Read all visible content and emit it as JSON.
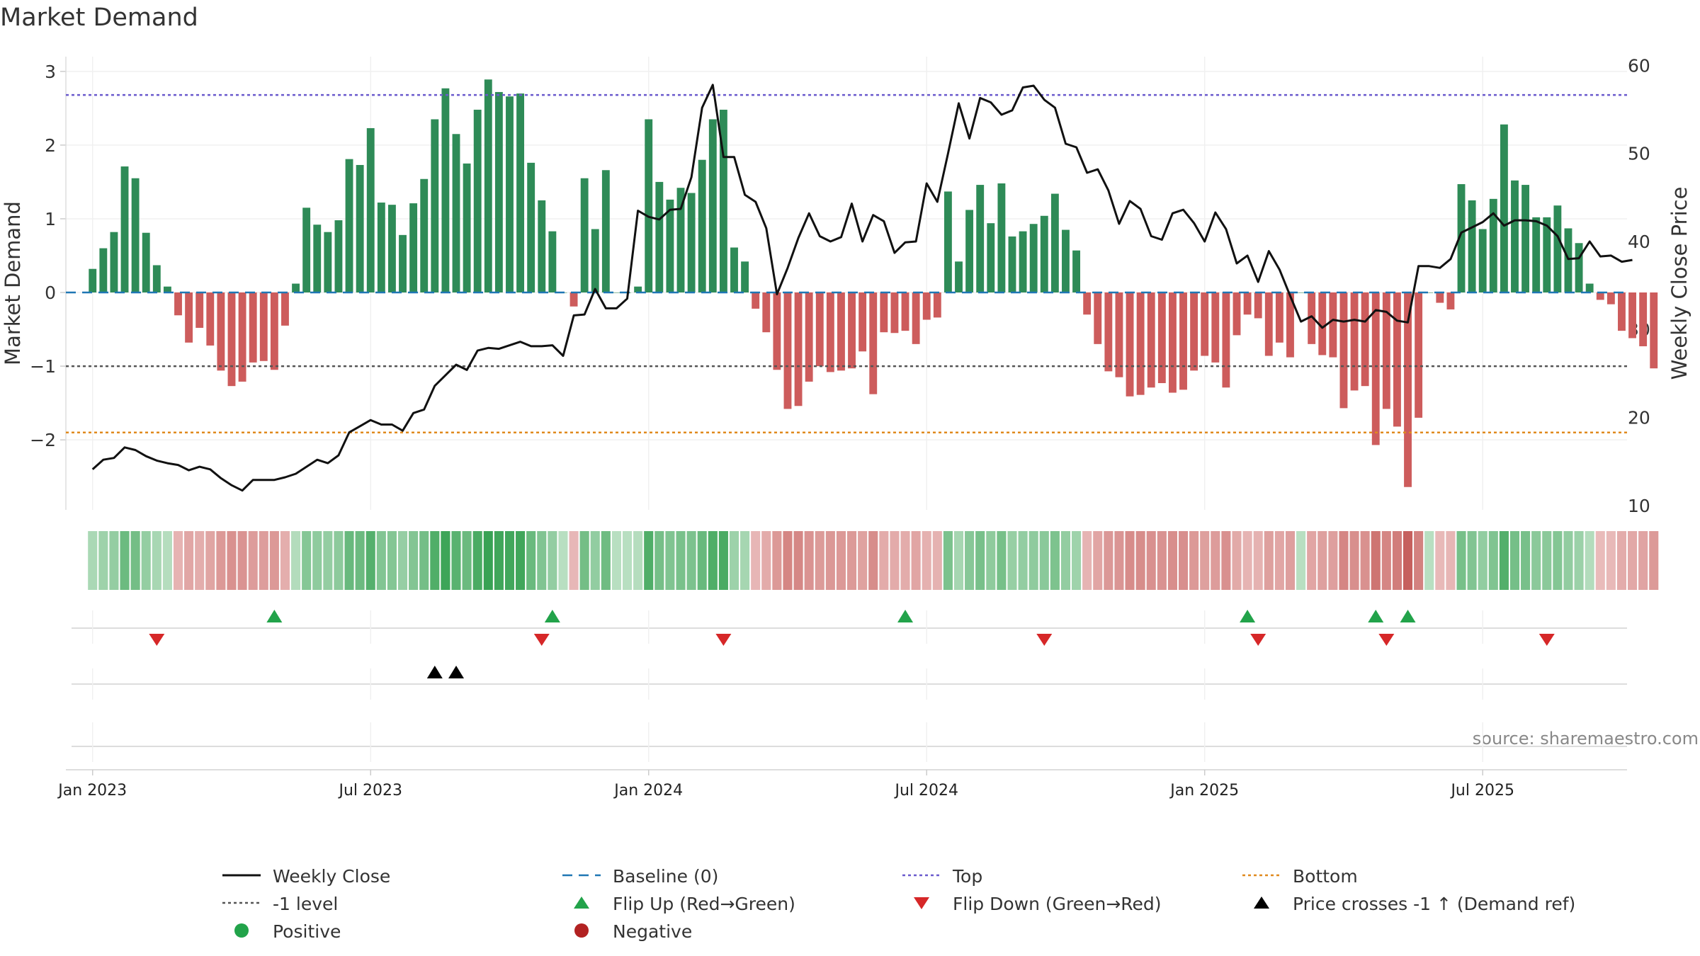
{
  "chart_data": {
    "type": "bar",
    "title": "Market Demand",
    "ylabel": "Market Demand",
    "y2label": "Weekly Close Price",
    "source": "source: sharemaestro.com",
    "ylim": [
      -2.95,
      3.2
    ],
    "y2lim": [
      9.5,
      61
    ],
    "yticks": [
      3,
      2,
      1,
      0,
      -1,
      -2
    ],
    "ytick_labels": [
      "3",
      "2",
      "1",
      "0",
      "−1",
      "−2"
    ],
    "y2ticks": [
      60,
      50,
      40,
      30,
      20,
      10
    ],
    "y2tick_labels": [
      "60",
      "50",
      "40",
      "30",
      "20",
      "10"
    ],
    "xlim": [
      -2.5,
      143.5
    ],
    "xticks": [
      0,
      26,
      52,
      78,
      104,
      130
    ],
    "xtick_labels": [
      "Jan 2023",
      "Jul 2023",
      "Jan 2024",
      "Jul 2024",
      "Jan 2025",
      "Jul 2025"
    ],
    "reference_lines": {
      "top": 2.68,
      "minus_one": -1,
      "bottom": -1.9,
      "baseline": 0
    },
    "demand": [
      0.32,
      0.6,
      0.82,
      1.71,
      1.55,
      0.81,
      0.37,
      0.08,
      -0.31,
      -0.68,
      -0.48,
      -0.72,
      -1.06,
      -1.27,
      -1.21,
      -0.95,
      -0.93,
      -1.05,
      -0.45,
      0.12,
      1.15,
      0.92,
      0.82,
      0.98,
      1.81,
      1.73,
      2.23,
      1.22,
      1.19,
      0.78,
      1.21,
      1.54,
      2.35,
      2.77,
      2.15,
      1.75,
      2.48,
      2.89,
      2.72,
      2.66,
      2.7,
      1.76,
      1.25,
      0.83,
      0.0,
      -0.19,
      1.55,
      0.86,
      1.66,
      0.0,
      0.0,
      0.08,
      2.35,
      1.5,
      1.26,
      1.42,
      1.35,
      1.8,
      2.35,
      2.48,
      0.61,
      0.42,
      -0.22,
      -0.54,
      -1.05,
      -1.58,
      -1.54,
      -1.21,
      -1.0,
      -1.08,
      -1.06,
      -1.03,
      -0.8,
      -1.38,
      -0.54,
      -0.55,
      -0.52,
      -0.7,
      -0.37,
      -0.34,
      1.37,
      0.42,
      1.12,
      1.46,
      0.94,
      1.48,
      0.76,
      0.83,
      0.93,
      1.04,
      1.34,
      0.85,
      0.57,
      -0.3,
      -0.7,
      -1.07,
      -1.15,
      -1.41,
      -1.39,
      -1.29,
      -1.23,
      -1.36,
      -1.32,
      -1.06,
      -0.86,
      -0.95,
      -1.29,
      -0.58,
      -0.3,
      -0.35,
      -0.86,
      -0.68,
      -0.88,
      0.0,
      -0.7,
      -0.85,
      -0.88,
      -1.57,
      -1.33,
      -1.27,
      -2.07,
      -1.58,
      -1.82,
      -2.64,
      -1.7,
      0.0,
      -0.14,
      -0.23,
      1.47,
      1.25,
      0.86,
      1.27,
      2.28,
      1.52,
      1.46,
      1.02,
      1.02,
      1.18,
      0.87,
      0.67,
      0.12,
      -0.1,
      -0.16,
      -0.52,
      -0.62,
      -0.73,
      -1.03
    ],
    "weekly_close": [
      14.1,
      15.2,
      15.4,
      16.6,
      16.3,
      15.6,
      15.1,
      14.8,
      14.6,
      14.0,
      14.4,
      14.1,
      13.1,
      12.3,
      11.7,
      12.9,
      12.9,
      12.9,
      13.2,
      13.6,
      14.4,
      15.2,
      14.8,
      15.7,
      18.3,
      19.0,
      19.7,
      19.2,
      19.2,
      18.5,
      20.5,
      20.9,
      23.6,
      24.8,
      26.0,
      25.4,
      27.6,
      27.9,
      27.8,
      28.2,
      28.6,
      28.1,
      28.1,
      28.2,
      27.0,
      31.6,
      31.7,
      34.6,
      32.4,
      32.4,
      33.5,
      43.5,
      42.8,
      42.5,
      43.6,
      43.7,
      47.3,
      55.2,
      57.8,
      49.6,
      49.6,
      45.3,
      44.5,
      41.5,
      34.0,
      37.0,
      40.4,
      43.2,
      40.6,
      40.0,
      40.5,
      44.3,
      40.0,
      43.0,
      42.3,
      38.7,
      39.9,
      40.0,
      46.6,
      44.5,
      50.0,
      55.7,
      51.7,
      56.3,
      55.8,
      54.4,
      54.9,
      57.5,
      57.7,
      56.1,
      55.2,
      51.1,
      50.7,
      47.8,
      48.2,
      45.8,
      42.0,
      44.6,
      43.7,
      40.6,
      40.2,
      43.2,
      43.6,
      42.1,
      40.0,
      43.3,
      41.4,
      37.5,
      38.4,
      35.4,
      38.9,
      36.8,
      33.8,
      30.9,
      31.5,
      30.2,
      31.1,
      30.9,
      31.1,
      30.9,
      32.2,
      32.0,
      31.0,
      30.8,
      37.2,
      37.2,
      37.0,
      38.0,
      41.0,
      41.6,
      42.2,
      43.2,
      41.8,
      42.4,
      42.4,
      42.3,
      41.8,
      40.6,
      38.0,
      38.1,
      40.0,
      38.3,
      38.4,
      37.7,
      37.9
    ],
    "flip_up_weeks": [
      17,
      43,
      76,
      108,
      120,
      123
    ],
    "flip_down_weeks": [
      6,
      42,
      59,
      89,
      109,
      121,
      136
    ],
    "price_cross_weeks": [
      32,
      34
    ],
    "legend": [
      {
        "label": "Weekly Close",
        "kind": "line"
      },
      {
        "label": "Baseline (0)",
        "kind": "dash"
      },
      {
        "label": "Top",
        "kind": "dot-purple"
      },
      {
        "label": "Bottom",
        "kind": "dot-orange"
      },
      {
        "label": "-1 level",
        "kind": "dot-gray"
      },
      {
        "label": "Flip Up (Red→Green)",
        "kind": "tri-up-green"
      },
      {
        "label": "Flip Down (Green→Red)",
        "kind": "tri-down-red"
      },
      {
        "label": "Price crosses -1 ↑ (Demand ref)",
        "kind": "tri-up-black"
      },
      {
        "label": "Positive",
        "kind": "circle-green"
      },
      {
        "label": "Negative",
        "kind": "circle-red"
      }
    ],
    "colors": {
      "positive": "#2e8b57",
      "negative": "#cd5c5c",
      "close": "#111111",
      "top": "#6a5acd",
      "bottom": "#e08a1e",
      "minus_one": "#555555",
      "baseline": "#1f77b4",
      "flip_up": "#22a34a",
      "flip_down": "#d62728",
      "cross": "#000000",
      "negative_dot": "#b22222"
    }
  }
}
